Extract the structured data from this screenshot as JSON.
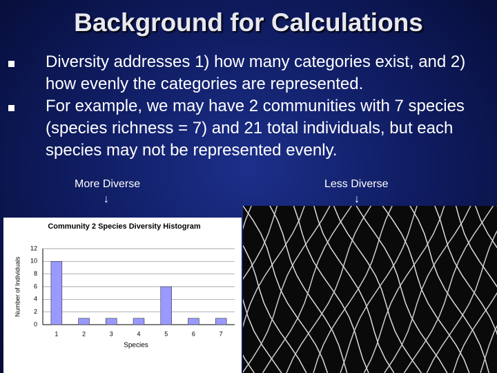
{
  "title": "Background for Calculations",
  "bullets": [
    "Diversity addresses 1) how many categories exist, and 2) how evenly the categories are represented.",
    "For example, we may have 2 communities with 7 species  (species richness = 7) and 21 total individuals, but each species may not be represented evenly."
  ],
  "captions": {
    "left": "More Diverse",
    "left_arrow": "↓",
    "right": "Less Diverse",
    "right_arrow": "↓"
  },
  "chart_data": {
    "type": "bar",
    "title": "Community 2 Species Diversity Histogram",
    "x_label": "Species",
    "y_label": "Number of Individuals",
    "categories": [
      "1",
      "2",
      "3",
      "4",
      "5",
      "6",
      "7"
    ],
    "values": [
      10,
      1,
      1,
      1,
      6,
      1,
      1
    ],
    "color": "#9999ff",
    "ylim": [
      0,
      12
    ],
    "yticks": [
      0,
      2,
      4,
      6,
      8,
      10,
      12
    ],
    "grid": true
  }
}
